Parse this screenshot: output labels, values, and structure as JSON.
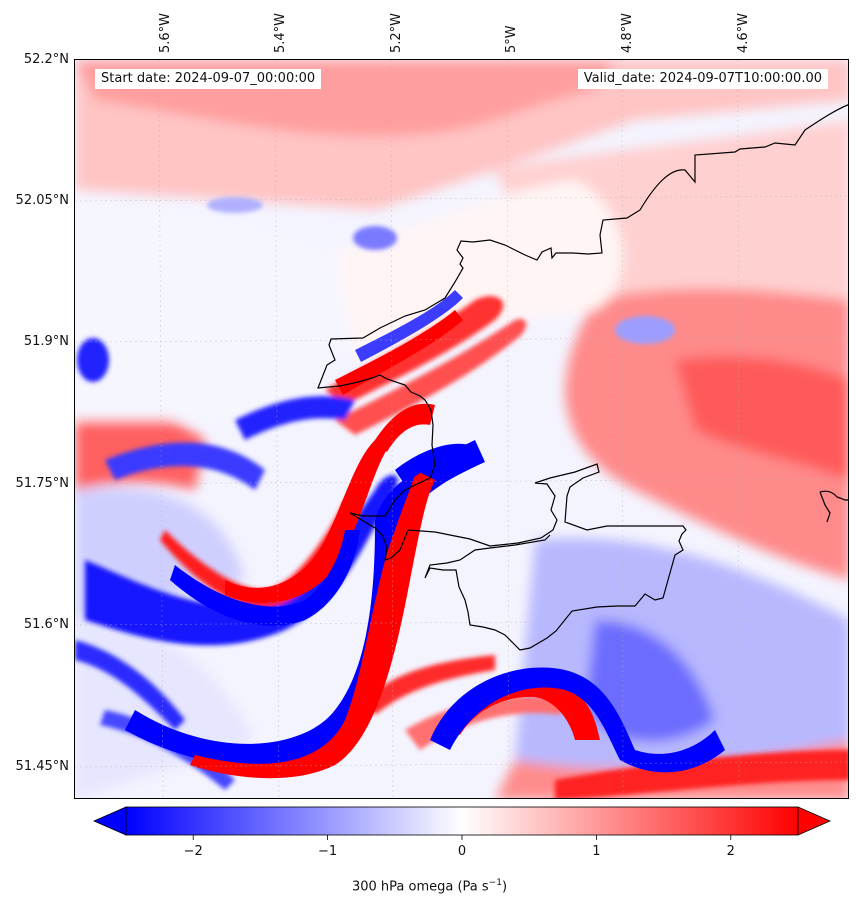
{
  "map": {
    "start_label": "Start date: 2024-09-07_00:00:00",
    "valid_label": "Valid_date: 2024-09-07T10:00:00.00",
    "field": "300 hPa omega",
    "lon_ticks": [
      "5.6°W",
      "5.4°W",
      "5.2°W",
      "5°W",
      "4.8°W",
      "4.6°W"
    ],
    "lat_ticks": [
      "52.2°N",
      "52.05°N",
      "51.9°N",
      "51.75°N",
      "51.6°N",
      "51.45°N"
    ],
    "colors": {
      "negative": "#0000ff",
      "zero": "#ffffff",
      "positive": "#ff0000",
      "coastline": "#000000"
    }
  },
  "colorbar": {
    "label_main": "300 hPa omega (Pa s",
    "label_exp": "−1",
    "label_close": ")",
    "min": -2.5,
    "max": 2.5,
    "ticks": [
      "−2",
      "−1",
      "0",
      "1",
      "2"
    ],
    "tick_values": [
      -2,
      -1,
      0,
      1,
      2
    ],
    "extend": "both"
  }
}
